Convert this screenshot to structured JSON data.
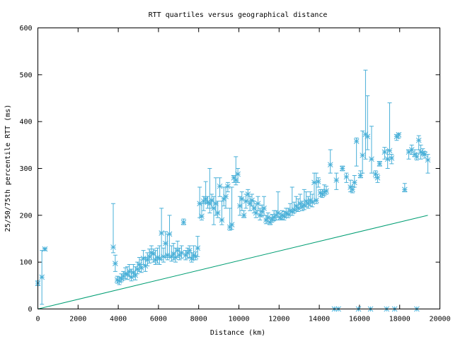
{
  "chart_data": {
    "type": "scatter",
    "title": "RTT quartiles versus geographical distance",
    "xlabel": "Distance (km)",
    "ylabel": "25/50/75th percentile RTT (ms)",
    "xlim": [
      0,
      20000
    ],
    "ylim": [
      0,
      600
    ],
    "xticks": [
      "0",
      "2000",
      "4000",
      "6000",
      "8000",
      "10000",
      "12000",
      "14000",
      "16000",
      "18000",
      "20000"
    ],
    "yticks": [
      "0",
      "100",
      "200",
      "300",
      "400",
      "500",
      "600"
    ],
    "grid": false,
    "legend": "none",
    "colors": {
      "points": "#4ab0d8",
      "reference_line": "#009e73"
    },
    "reference_line": {
      "x": [
        0,
        19400
      ],
      "y": [
        0,
        200
      ]
    },
    "series": [
      {
        "points": [
          [
            0,
            55,
            50,
            60
          ],
          [
            200,
            68,
            10,
            125
          ],
          [
            350,
            128,
            125,
            130
          ],
          [
            3750,
            132,
            120,
            225
          ],
          [
            3850,
            97,
            80,
            115
          ],
          [
            3950,
            62,
            55,
            70
          ],
          [
            4050,
            60,
            52,
            68
          ],
          [
            4150,
            65,
            58,
            75
          ],
          [
            4250,
            70,
            62,
            80
          ],
          [
            4350,
            75,
            65,
            88
          ],
          [
            4450,
            74,
            63,
            90
          ],
          [
            4550,
            80,
            70,
            95
          ],
          [
            4650,
            68,
            60,
            85
          ],
          [
            4750,
            78,
            68,
            95
          ],
          [
            4850,
            72,
            62,
            90
          ],
          [
            4950,
            85,
            75,
            100
          ],
          [
            5050,
            95,
            80,
            110
          ],
          [
            5150,
            88,
            78,
            105
          ],
          [
            5250,
            108,
            95,
            125
          ],
          [
            5350,
            92,
            80,
            110
          ],
          [
            5450,
            105,
            92,
            120
          ],
          [
            5550,
            112,
            98,
            128
          ],
          [
            5650,
            120,
            105,
            135
          ],
          [
            5750,
            118,
            100,
            128
          ],
          [
            5850,
            105,
            95,
            125
          ],
          [
            5950,
            110,
            98,
            130
          ],
          [
            6050,
            108,
            95,
            135
          ],
          [
            6150,
            162,
            105,
            215
          ],
          [
            6250,
            112,
            100,
            130
          ],
          [
            6350,
            140,
            110,
            165
          ],
          [
            6450,
            115,
            105,
            160
          ],
          [
            6550,
            160,
            110,
            200
          ],
          [
            6650,
            112,
            102,
            135
          ],
          [
            6750,
            118,
            105,
            140
          ],
          [
            6850,
            110,
            100,
            130
          ],
          [
            6950,
            125,
            110,
            145
          ],
          [
            7050,
            115,
            105,
            130
          ],
          [
            7150,
            120,
            108,
            135
          ],
          [
            7250,
            185,
            180,
            192
          ],
          [
            7350,
            115,
            105,
            125
          ],
          [
            7450,
            120,
            108,
            130
          ],
          [
            7550,
            125,
            110,
            135
          ],
          [
            7650,
            108,
            100,
            120
          ],
          [
            7750,
            115,
            105,
            135
          ],
          [
            7850,
            112,
            105,
            122
          ],
          [
            7950,
            130,
            112,
            155
          ],
          [
            8050,
            225,
            195,
            260
          ],
          [
            8150,
            198,
            190,
            225
          ],
          [
            8250,
            230,
            210,
            240
          ],
          [
            8350,
            235,
            225,
            272
          ],
          [
            8450,
            228,
            215,
            240
          ],
          [
            8550,
            225,
            205,
            300
          ],
          [
            8650,
            232,
            215,
            245
          ],
          [
            8750,
            215,
            180,
            240
          ],
          [
            8850,
            225,
            200,
            280
          ],
          [
            8950,
            205,
            195,
            230
          ],
          [
            9050,
            262,
            240,
            280
          ],
          [
            9150,
            190,
            180,
            230
          ],
          [
            9250,
            235,
            220,
            260
          ],
          [
            9350,
            240,
            215,
            260
          ],
          [
            9450,
            262,
            250,
            270
          ],
          [
            9550,
            175,
            168,
            215
          ],
          [
            9650,
            180,
            170,
            260
          ],
          [
            9750,
            280,
            270,
            285
          ],
          [
            9850,
            275,
            265,
            325
          ],
          [
            9950,
            288,
            270,
            300
          ],
          [
            10050,
            220,
            200,
            240
          ],
          [
            10150,
            235,
            210,
            250
          ],
          [
            10250,
            200,
            195,
            210
          ],
          [
            10350,
            230,
            215,
            245
          ],
          [
            10450,
            245,
            230,
            255
          ],
          [
            10550,
            225,
            210,
            240
          ],
          [
            10650,
            232,
            220,
            245
          ],
          [
            10750,
            215,
            205,
            230
          ],
          [
            10850,
            205,
            195,
            225
          ],
          [
            10950,
            225,
            210,
            240
          ],
          [
            11050,
            200,
            190,
            215
          ],
          [
            11150,
            208,
            198,
            222
          ],
          [
            11250,
            215,
            200,
            240
          ],
          [
            11350,
            190,
            182,
            200
          ],
          [
            11450,
            195,
            185,
            205
          ],
          [
            11550,
            185,
            180,
            195
          ],
          [
            11650,
            192,
            185,
            202
          ],
          [
            11750,
            196,
            188,
            210
          ],
          [
            11850,
            200,
            190,
            210
          ],
          [
            11950,
            205,
            195,
            250
          ],
          [
            12050,
            195,
            190,
            205
          ],
          [
            12150,
            200,
            192,
            210
          ],
          [
            12250,
            198,
            190,
            208
          ],
          [
            12350,
            205,
            195,
            215
          ],
          [
            12450,
            202,
            195,
            215
          ],
          [
            12550,
            210,
            200,
            225
          ],
          [
            12650,
            208,
            200,
            260
          ],
          [
            12750,
            212,
            205,
            228
          ],
          [
            12850,
            220,
            210,
            240
          ],
          [
            12950,
            215,
            208,
            235
          ],
          [
            13050,
            225,
            215,
            245
          ],
          [
            13150,
            218,
            210,
            230
          ],
          [
            13250,
            222,
            212,
            255
          ],
          [
            13350,
            230,
            218,
            250
          ],
          [
            13450,
            225,
            215,
            240
          ],
          [
            13550,
            232,
            220,
            250
          ],
          [
            13650,
            228,
            218,
            245
          ],
          [
            13750,
            270,
            230,
            290
          ],
          [
            13850,
            232,
            225,
            290
          ],
          [
            13950,
            272,
            260,
            280
          ],
          [
            14050,
            248,
            240,
            255
          ],
          [
            14150,
            245,
            238,
            255
          ],
          [
            14250,
            250,
            242,
            265
          ],
          [
            14350,
            252,
            245,
            262
          ],
          [
            14550,
            308,
            290,
            340
          ],
          [
            14850,
            275,
            255,
            290
          ],
          [
            15150,
            300,
            295,
            305
          ],
          [
            15350,
            282,
            270,
            290
          ],
          [
            15550,
            260,
            250,
            275
          ],
          [
            15650,
            255,
            248,
            262
          ],
          [
            15750,
            270,
            260,
            285
          ],
          [
            15850,
            358,
            305,
            365
          ],
          [
            16050,
            285,
            280,
            295
          ],
          [
            16150,
            328,
            290,
            380
          ],
          [
            16300,
            373,
            320,
            510
          ],
          [
            16400,
            368,
            340,
            455
          ],
          [
            16600,
            320,
            290,
            390
          ],
          [
            16800,
            288,
            280,
            295
          ],
          [
            16900,
            280,
            270,
            288
          ],
          [
            17000,
            310,
            305,
            315
          ],
          [
            17250,
            335,
            320,
            345
          ],
          [
            17400,
            320,
            300,
            340
          ],
          [
            17500,
            338,
            330,
            440
          ],
          [
            17600,
            322,
            310,
            330
          ],
          [
            17850,
            368,
            360,
            372
          ],
          [
            17950,
            372,
            365,
            375
          ],
          [
            18250,
            255,
            250,
            268
          ],
          [
            18450,
            335,
            320,
            340
          ],
          [
            18600,
            340,
            330,
            350
          ],
          [
            18750,
            330,
            325,
            340
          ],
          [
            18850,
            325,
            318,
            332
          ],
          [
            18950,
            360,
            340,
            370
          ],
          [
            19050,
            335,
            320,
            350
          ],
          [
            19150,
            333,
            328,
            342
          ],
          [
            19250,
            330,
            322,
            336
          ],
          [
            19400,
            318,
            290,
            330
          ],
          [
            14750,
            0,
            0,
            0
          ],
          [
            14950,
            0,
            0,
            0
          ],
          [
            15950,
            0,
            0,
            0
          ],
          [
            16550,
            0,
            0,
            0
          ],
          [
            17350,
            0,
            0,
            0
          ],
          [
            17750,
            0,
            0,
            0
          ],
          [
            18850,
            0,
            0,
            0
          ]
        ]
      }
    ]
  }
}
